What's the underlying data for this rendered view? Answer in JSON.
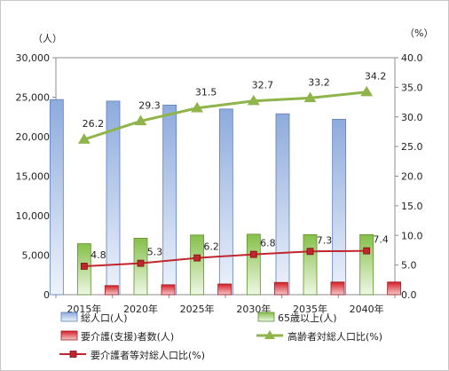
{
  "chart_data": {
    "type": "bar",
    "categories": [
      "2015年",
      "2020年",
      "2025年",
      "2030年",
      "2035年",
      "2040年"
    ],
    "left_axis": {
      "unit": "（人）",
      "ylim": [
        0,
        30000
      ],
      "ticks": [
        "0",
        "5,000",
        "10,000",
        "15,000",
        "20,000",
        "25,000",
        "30,000"
      ]
    },
    "right_axis": {
      "unit": "（%）",
      "ylim": [
        0,
        40
      ],
      "ticks": [
        "0.0",
        "5.0",
        "10.0",
        "15.0",
        "20.0",
        "25.0",
        "30.0",
        "35.0",
        "40.0"
      ]
    },
    "series": [
      {
        "name": "総人口(人)",
        "type": "bar",
        "axis": "left",
        "color": "#9bb7e4",
        "values": [
          24700,
          24500,
          24000,
          23500,
          22900,
          22200
        ]
      },
      {
        "name": "65歳以上(人)",
        "type": "bar",
        "axis": "left",
        "color": "#8cc24f",
        "values": [
          6450,
          7150,
          7550,
          7650,
          7600,
          7600
        ]
      },
      {
        "name": "要介護(支援)者数(人)",
        "type": "bar",
        "axis": "left",
        "color": "#d9242a",
        "values": [
          1150,
          1250,
          1350,
          1550,
          1600,
          1600
        ]
      },
      {
        "name": "高齢者対総人口比(%)",
        "type": "line",
        "axis": "right",
        "color": "#8fb54a",
        "marker": "triangle",
        "values": [
          26.2,
          29.3,
          31.5,
          32.7,
          33.2,
          34.2
        ],
        "labels": [
          "26.2",
          "29.3",
          "31.5",
          "32.7",
          "33.2",
          "34.2"
        ]
      },
      {
        "name": "要介護者等対総人口比(%)",
        "type": "line",
        "axis": "right",
        "color": "#c0262c",
        "marker": "square",
        "values": [
          4.8,
          5.3,
          6.2,
          6.8,
          7.3,
          7.4
        ],
        "labels": [
          "4.8",
          "5.3",
          "6.2",
          "6.8",
          "7.3",
          "7.4"
        ]
      }
    ],
    "grid": false,
    "legend_position": "bottom"
  }
}
